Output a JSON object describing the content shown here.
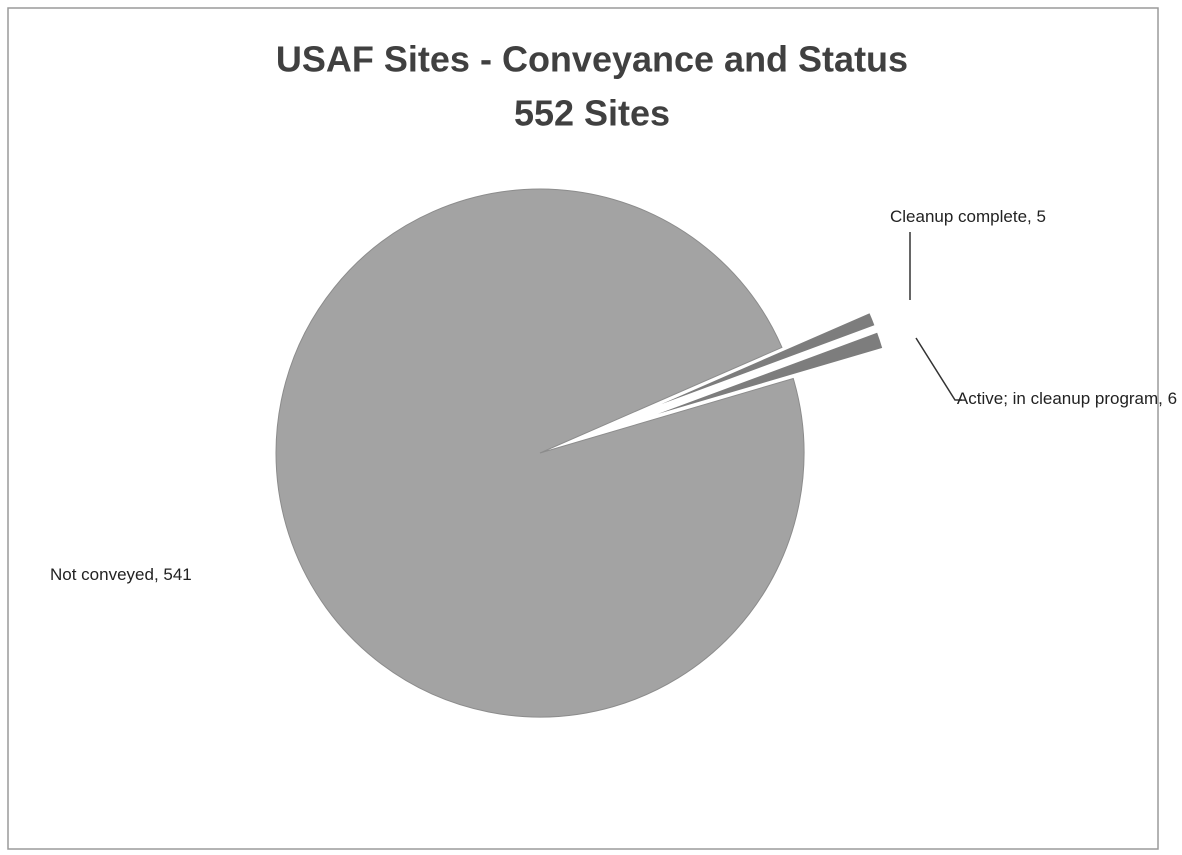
{
  "chart_data": {
    "type": "pie",
    "title": "USAF Sites - Conveyance and Status",
    "subtitle": "552 Sites",
    "categories": [
      "Not conveyed",
      "Cleanup complete",
      "Active; in cleanup program"
    ],
    "values": [
      541,
      5,
      6
    ],
    "value_labels": [
      "Not conveyed, 541",
      "Cleanup complete, 5",
      "Active; in cleanup program, 6"
    ],
    "colors": [
      "#a3a3a3",
      "#7d7d7d",
      "#7d7d7d"
    ]
  }
}
